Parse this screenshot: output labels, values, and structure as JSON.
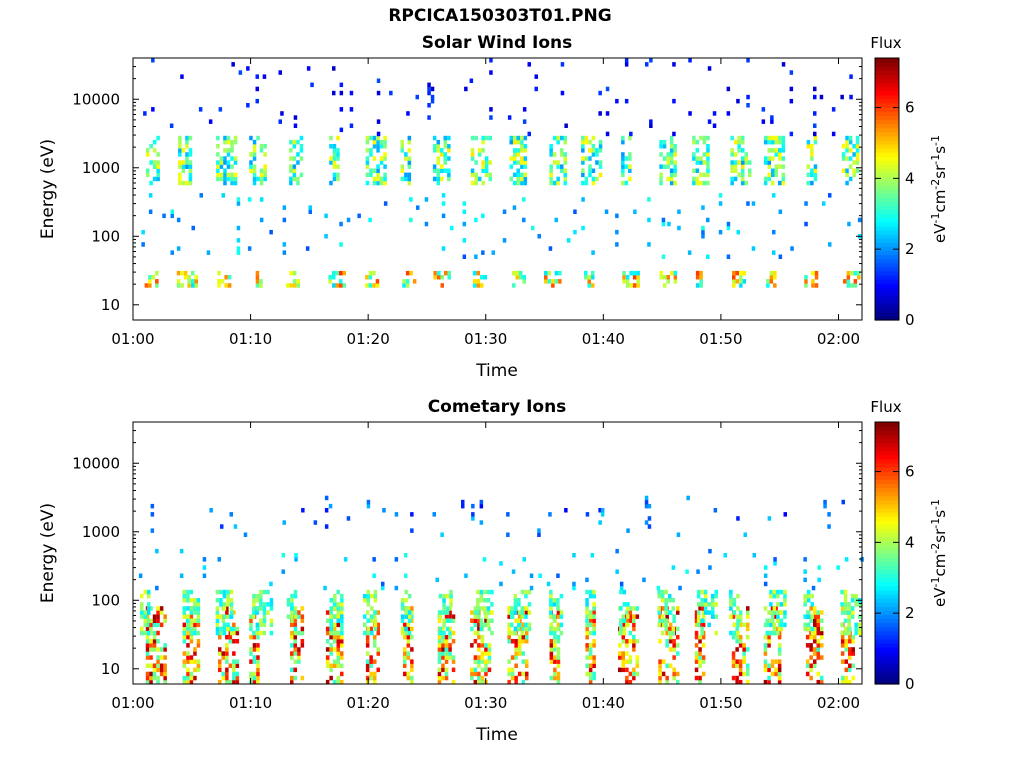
{
  "figure": {
    "title": "RPCICA150303T01.PNG"
  },
  "colorbar": {
    "title": "Flux",
    "label": "eV-1cm-2sr-1s-1",
    "range": [
      0,
      7.4
    ],
    "ticks": [
      0,
      2,
      4,
      6
    ],
    "colormap": "jet"
  },
  "chart_data": [
    {
      "type": "heatmap",
      "title": "Solar Wind Ions",
      "xlabel": "Time",
      "ylabel": "Energy (eV)",
      "x_tick_labels": [
        "01:00",
        "01:10",
        "01:20",
        "01:30",
        "01:40",
        "01:50",
        "02:00"
      ],
      "x_range_minutes": [
        0,
        62
      ],
      "y_scale": "log",
      "y_ticks": [
        10,
        100,
        1000,
        10000
      ],
      "y_range": [
        6,
        40000
      ],
      "grid": false,
      "cadence_minutes": 3.125,
      "bands": [
        {
          "energy_range": [
            17,
            32
          ],
          "flux_range": [
            2.5,
            6.2
          ],
          "occurrence": "bursts every scan"
        },
        {
          "energy_range": [
            600,
            3000
          ],
          "flux_range": [
            2.0,
            4.8
          ],
          "occurrence": "bursts every scan"
        },
        {
          "energy_range": [
            3000,
            40000
          ],
          "flux_range": [
            0.5,
            1.5
          ],
          "occurrence": "sparse"
        },
        {
          "energy_range": [
            50,
            400
          ],
          "flux_range": [
            1.5,
            3.0
          ],
          "occurrence": "sparse"
        }
      ]
    },
    {
      "type": "heatmap",
      "title": "Cometary Ions",
      "xlabel": "Time",
      "ylabel": "Energy (eV)",
      "x_tick_labels": [
        "01:00",
        "01:10",
        "01:20",
        "01:30",
        "01:40",
        "01:50",
        "02:00"
      ],
      "x_range_minutes": [
        0,
        62
      ],
      "y_scale": "log",
      "y_ticks": [
        10,
        100,
        1000,
        10000
      ],
      "y_range": [
        6,
        40000
      ],
      "grid": false,
      "cadence_minutes": 3.125,
      "bands": [
        {
          "energy_range": [
            6,
            80
          ],
          "flux_range": [
            3.0,
            7.2
          ],
          "occurrence": "bursts every scan"
        },
        {
          "energy_range": [
            30,
            150
          ],
          "flux_range": [
            2.5,
            4.5
          ],
          "occurrence": "bursts every scan"
        },
        {
          "energy_range": [
            800,
            3500
          ],
          "flux_range": [
            0.8,
            2.5
          ],
          "occurrence": "sparse"
        },
        {
          "energy_range": [
            150,
            600
          ],
          "flux_range": [
            1.5,
            3.0
          ],
          "occurrence": "sparse"
        }
      ]
    }
  ]
}
